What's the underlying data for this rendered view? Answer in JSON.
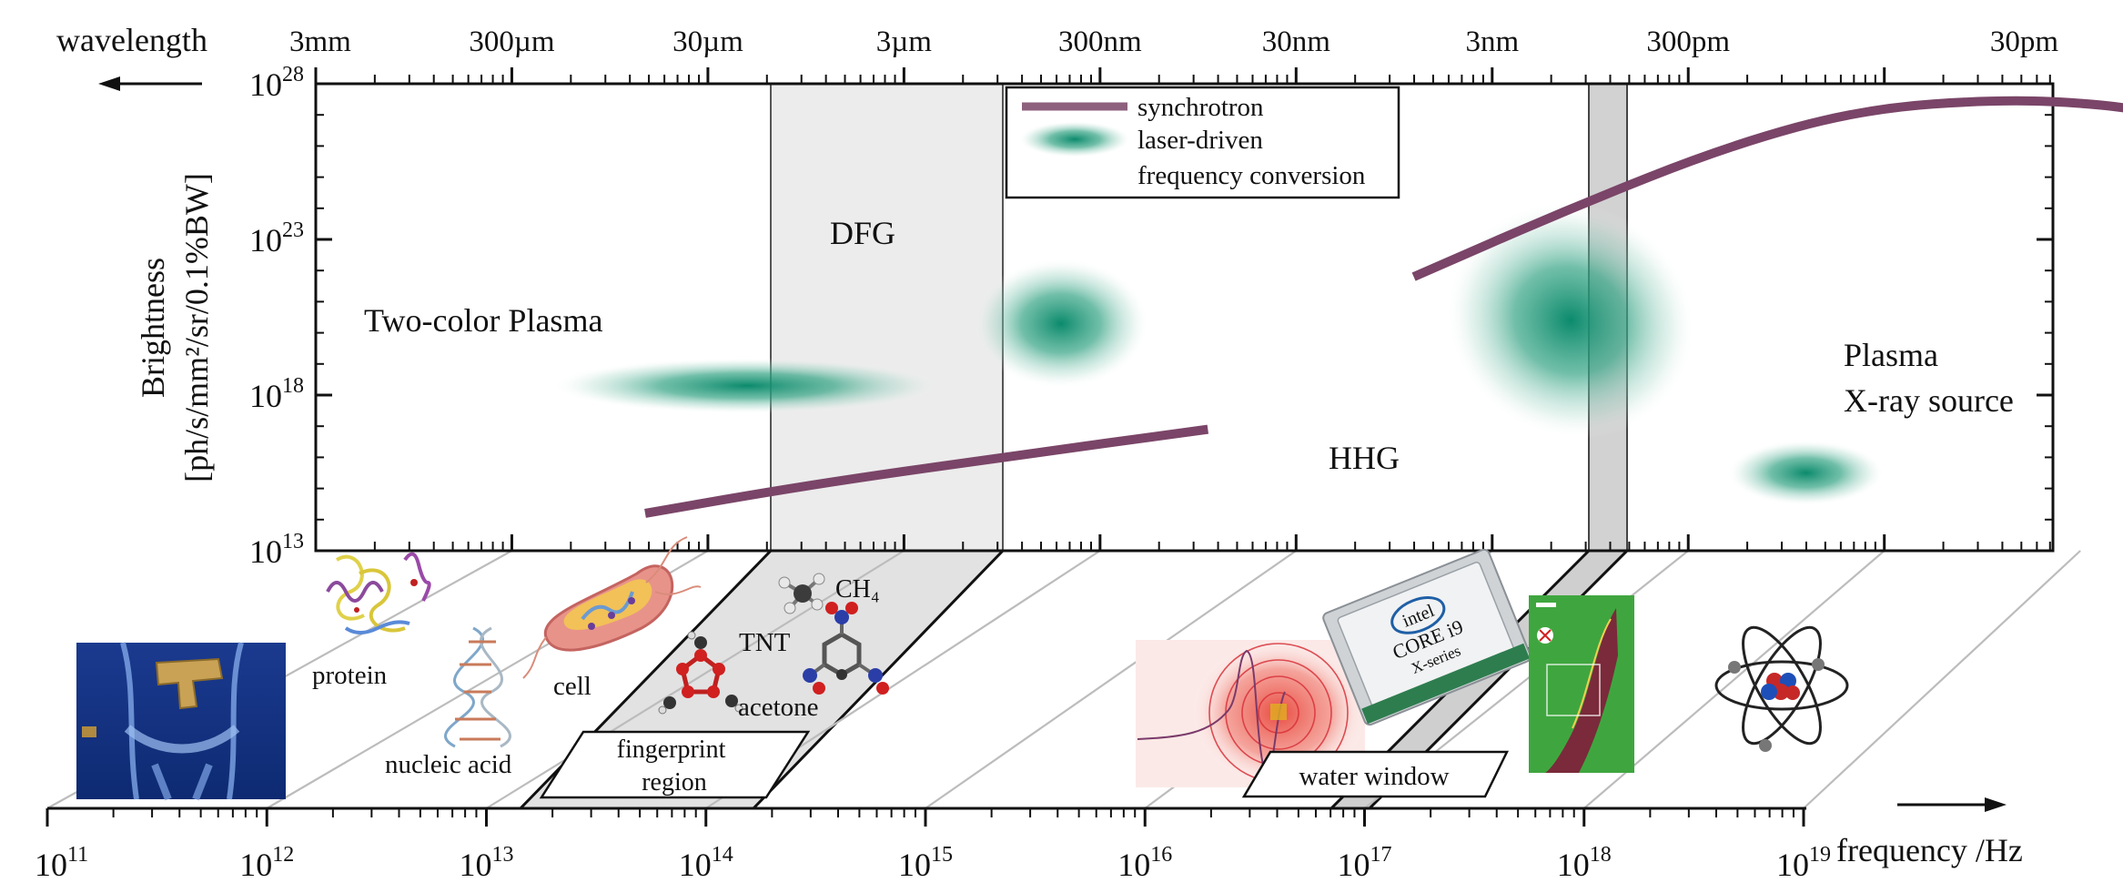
{
  "chart_data": {
    "type": "scatter",
    "x_axis_label": "frequency /Hz",
    "x_scale": "log",
    "x_range_hz": [
      100000000000.0,
      1e+19
    ],
    "x_tick_exponents": [
      11,
      12,
      13,
      14,
      15,
      16,
      17,
      18,
      19
    ],
    "top_axis_label": "wavelength",
    "top_axis_ticks": [
      "3mm",
      "300µm",
      "30µm",
      "3µm",
      "300nm",
      "30nm",
      "3nm",
      "300pm",
      "30pm"
    ],
    "y_axis_label_line1": "Brightness",
    "y_axis_label_line2": "[ph/s/mm²/sr/0.1%BW]",
    "y_scale": "log",
    "y_range_exponent": [
      13,
      28
    ],
    "y_tick_exponents": [
      13,
      18,
      23,
      28
    ],
    "legend": [
      {
        "label": "synchrotron",
        "marker": "line"
      },
      {
        "label": "laser-driven",
        "marker": "ellipse"
      },
      {
        "label": "frequency conversion",
        "marker": "none"
      }
    ],
    "regions": [
      {
        "label": "Two-color Plasma",
        "log_f_center": 13.2,
        "log_b_center": 18.3,
        "log_f_span": 2.0,
        "log_b_span": 1.8
      },
      {
        "label": "DFG",
        "log_f_center": 14.8,
        "log_b_center": 20.3,
        "log_f_span": 0.9,
        "log_b_span": 4.2
      },
      {
        "label": "HHG",
        "log_f_center": 17.4,
        "log_b_center": 20.4,
        "log_f_span": 1.3,
        "log_b_span": 7.5
      },
      {
        "label": "Plasma X-ray source",
        "log_f_center": 18.6,
        "log_b_center": 15.5,
        "log_f_span": 0.8,
        "log_b_span": 2.1
      }
    ],
    "synchrotron_segments": [
      [
        [
          12.68,
          14.2
        ],
        [
          13.5,
          15.1
        ],
        [
          14.5,
          16.0
        ],
        [
          15.55,
          16.9
        ]
      ],
      [
        [
          16.6,
          21.8
        ],
        [
          17.4,
          24.0
        ],
        [
          18.2,
          26.0
        ],
        [
          18.9,
          27.2
        ],
        [
          19.6,
          27.5
        ],
        [
          20.1,
          27.35
        ],
        [
          20.4,
          27.05
        ],
        [
          20.48,
          26.95
        ]
      ]
    ],
    "vertical_bands": [
      {
        "label": "fingerprint region",
        "log_f_range": [
          13.74,
          14.82
        ]
      },
      {
        "label": "water window",
        "log_f_range": [
          18.0,
          18.18
        ]
      }
    ],
    "applications": [
      "protein",
      "nucleic acid",
      "cell",
      "TNT",
      "CH₄",
      "acetone",
      "fingerprint region",
      "water window"
    ],
    "grid": false
  },
  "colors": {
    "synchrotron": "#7a4568",
    "laser": "#0b8a6c",
    "band_light": "#ececec",
    "band_dark": "#d0d0d0",
    "gridline": "#bcbcbc",
    "intel_blue": "#1f5fa6",
    "micro_green": "#3fa63f"
  },
  "icons": [
    "pistol-xray-icon",
    "protein-icon",
    "dna-icon",
    "cell-icon",
    "methane-molecule-icon",
    "tnt-molecule-icon",
    "acetone-molecule-icon",
    "hhg-pattern-icon",
    "intel-chip-icon",
    "cell-micrograph-icon",
    "atom-icon"
  ],
  "chip_brand": "intel",
  "chip_line1": "CORE i9",
  "chip_line2": "X-series"
}
